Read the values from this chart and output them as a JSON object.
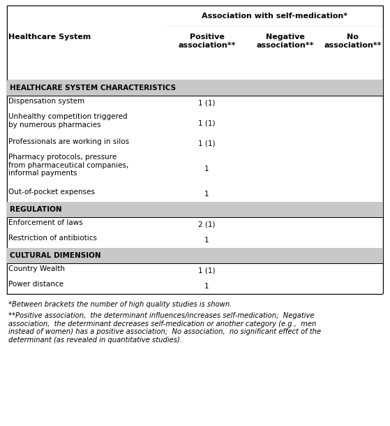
{
  "title": "Association with self-medication*",
  "col_header_row1": "Healthcare System",
  "col_headers": [
    "Positive\nassociation**",
    "Negative\nassociation**",
    "No\nassociation**"
  ],
  "rows": [
    {
      "label": "HEALTHCARE SYSTEM CHARACTERISTICS",
      "is_section": true,
      "positive": "",
      "negative": "",
      "no": ""
    },
    {
      "label": "Dispensation system",
      "is_section": false,
      "positive": "1 (1)",
      "negative": "",
      "no": ""
    },
    {
      "label": "Unhealthy competition triggered\nby numerous pharmacies",
      "is_section": false,
      "positive": "1 (1)",
      "negative": "",
      "no": ""
    },
    {
      "label": "Professionals are working in silos",
      "is_section": false,
      "positive": "1 (1)",
      "negative": "",
      "no": ""
    },
    {
      "label": "Pharmacy protocols, pressure\nfrom pharmaceutical companies,\ninformal payments",
      "is_section": false,
      "positive": "1",
      "negative": "",
      "no": ""
    },
    {
      "label": "Out-of-pocket expenses",
      "is_section": false,
      "positive": "1",
      "negative": "",
      "no": ""
    },
    {
      "label": "REGULATION",
      "is_section": true,
      "positive": "",
      "negative": "",
      "no": ""
    },
    {
      "label": "Enforcement of laws",
      "is_section": false,
      "positive": "2 (1)",
      "negative": "",
      "no": ""
    },
    {
      "label": "Restriction of antibiotics",
      "is_section": false,
      "positive": "1",
      "negative": "",
      "no": ""
    },
    {
      "label": "CULTURAL DIMENSION",
      "is_section": true,
      "positive": "",
      "negative": "",
      "no": ""
    },
    {
      "label": "Country Wealth",
      "is_section": false,
      "positive": "1 (1)",
      "negative": "",
      "no": ""
    },
    {
      "label": "Power distance",
      "is_section": false,
      "positive": "1",
      "negative": "",
      "no": ""
    }
  ],
  "footnote1": "*Between brackets the number of high quality studies is shown.",
  "footnote2": "**Positive association,  the determinant influences/increases self-medication;  Negative\nassociation,  the determinant decreases self-medication or another category (e.g.,  men\ninstead of women) has a positive association;  No association,  no significant effect of the\ndeterminant (as revealed in quantitative studies).",
  "section_bg_color": "#c8c8c8",
  "border_color": "#000000",
  "bg_color": "#ffffff",
  "text_color": "#000000",
  "fig_width": 5.59,
  "fig_height": 6.1,
  "dpi": 100
}
